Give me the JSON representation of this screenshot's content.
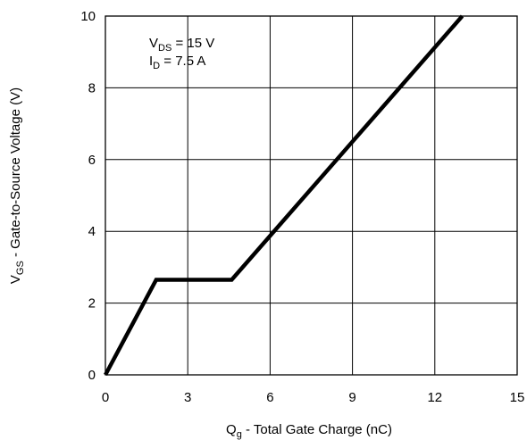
{
  "chart_data": {
    "type": "line",
    "xlabel": {
      "main": "Q",
      "sub": "g",
      "rest": "  -  Total Gate Charge (nC)"
    },
    "ylabel": {
      "main": "V",
      "sub": "GS",
      "rest": "  -  Gate-to-Source Voltage (V)"
    },
    "xlim": [
      0,
      15
    ],
    "ylim": [
      0,
      10
    ],
    "x_ticks": [
      0,
      3,
      6,
      9,
      12,
      15
    ],
    "y_ticks": [
      0,
      2,
      4,
      6,
      8,
      10
    ],
    "grid": true,
    "annotations": [
      {
        "main": "V",
        "sub": "DS",
        "rest": " = 15 V"
      },
      {
        "main": "I",
        "sub": "D",
        "rest": " = 7.5 A"
      }
    ],
    "series": [
      {
        "x": [
          0,
          1.85,
          4.6,
          13.0
        ],
        "y": [
          0,
          2.65,
          2.65,
          10
        ]
      }
    ]
  }
}
